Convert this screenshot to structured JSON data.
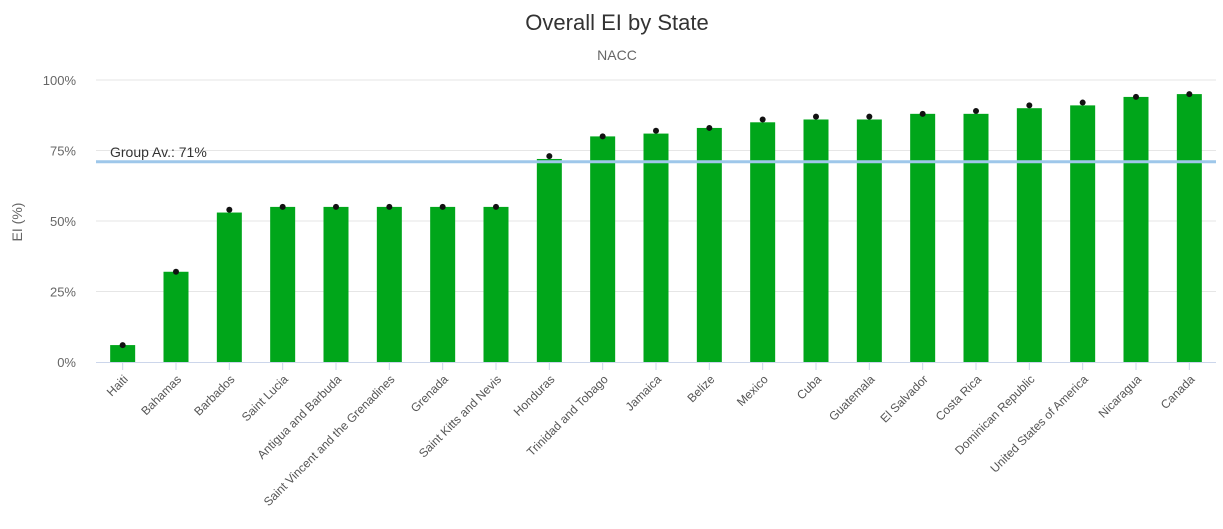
{
  "chart_data": {
    "type": "bar",
    "title": "Overall EI by State",
    "subtitle": "NACC",
    "ylabel": "EI (%)",
    "xlabel": "",
    "ylim": [
      0,
      100
    ],
    "yticks": [
      "0%",
      "25%",
      "50%",
      "75%",
      "100%"
    ],
    "grid": true,
    "categories": [
      "Haiti",
      "Bahamas",
      "Barbados",
      "Saint Lucia",
      "Antigua and Barbuda",
      "Saint Vincent and the Grenadines",
      "Grenada",
      "Saint Kitts and Nevis",
      "Honduras",
      "Trinidad and Tobago",
      "Jamaica",
      "Belize",
      "Mexico",
      "Cuba",
      "Guatemala",
      "El Salvador",
      "Costa Rica",
      "Dominican Republic",
      "United States of America",
      "Nicaragua",
      "Canada"
    ],
    "values": [
      6,
      32,
      53,
      55,
      55,
      55,
      55,
      55,
      72,
      80,
      81,
      83,
      85,
      86,
      86,
      88,
      88,
      90,
      91,
      94,
      95
    ],
    "markers": [
      6,
      32,
      54,
      55,
      55,
      55,
      55,
      55,
      73,
      80,
      82,
      83,
      86,
      87,
      87,
      88,
      89,
      91,
      92,
      94,
      95
    ],
    "group_average": {
      "label": "Group Av.: 71%",
      "value": 71
    },
    "colors": {
      "bar": "#00a61a",
      "marker": "#111111",
      "average": "#9ec7ea"
    }
  }
}
